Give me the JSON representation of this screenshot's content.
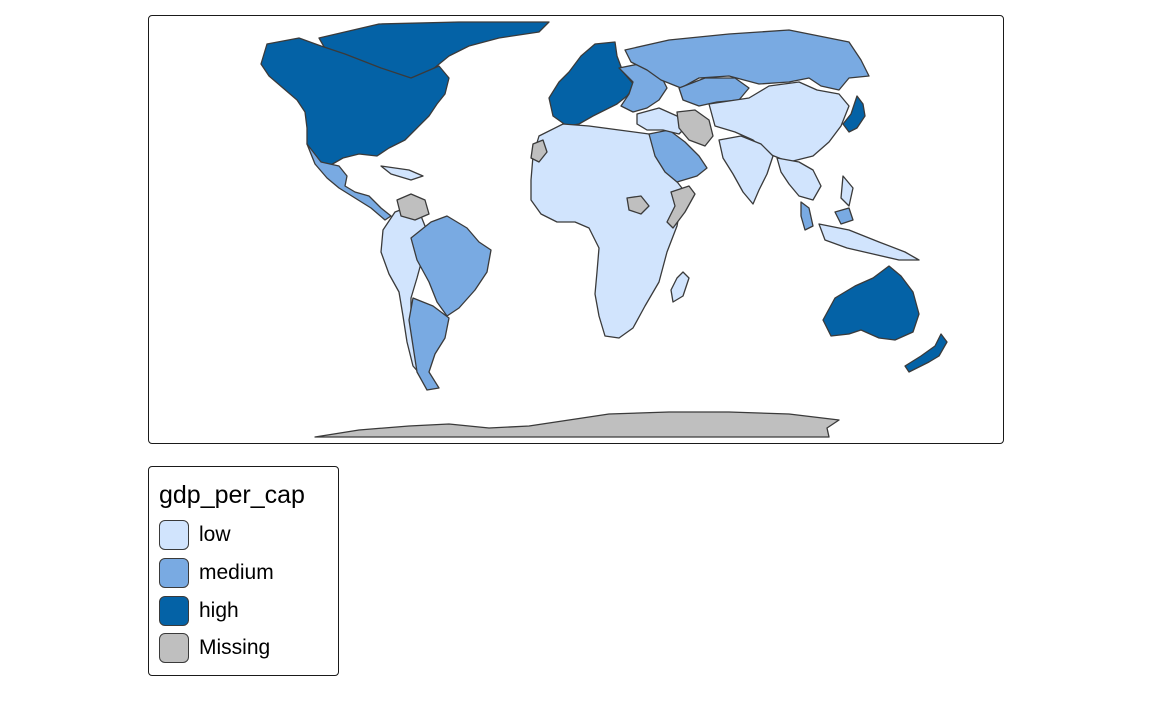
{
  "legend": {
    "title": "gdp_per_cap",
    "items": [
      {
        "label": "low",
        "color": "#d1e4fd"
      },
      {
        "label": "medium",
        "color": "#79aae2"
      },
      {
        "label": "high",
        "color": "#0462a6"
      },
      {
        "label": "Missing",
        "color": "#bfbfbf"
      }
    ]
  },
  "map": {
    "outline_color": "#3a3a3a",
    "regions": [
      {
        "name": "greenland",
        "class": "high"
      },
      {
        "name": "north-america",
        "class": "high"
      },
      {
        "name": "mexico-central-america",
        "class": "medium"
      },
      {
        "name": "caribbean",
        "class": "low"
      },
      {
        "name": "south-america-west",
        "class": "low"
      },
      {
        "name": "brazil",
        "class": "medium"
      },
      {
        "name": "southern-cone",
        "class": "medium"
      },
      {
        "name": "venezuela",
        "class": "missing"
      },
      {
        "name": "western-europe",
        "class": "high"
      },
      {
        "name": "eastern-europe",
        "class": "medium"
      },
      {
        "name": "russia",
        "class": "medium"
      },
      {
        "name": "kazakhstan",
        "class": "medium"
      },
      {
        "name": "africa",
        "class": "low"
      },
      {
        "name": "arabian-peninsula",
        "class": "medium"
      },
      {
        "name": "iran-afghanistan",
        "class": "missing"
      },
      {
        "name": "south-sudan",
        "class": "missing"
      },
      {
        "name": "western-sahara",
        "class": "missing"
      },
      {
        "name": "somalia",
        "class": "missing"
      },
      {
        "name": "middle-east",
        "class": "low"
      },
      {
        "name": "china-central-asia",
        "class": "low"
      },
      {
        "name": "india-south-asia",
        "class": "low"
      },
      {
        "name": "southeast-asia",
        "class": "low"
      },
      {
        "name": "malaysia",
        "class": "medium"
      },
      {
        "name": "japan",
        "class": "high"
      },
      {
        "name": "australia",
        "class": "high"
      },
      {
        "name": "new-zealand",
        "class": "high"
      },
      {
        "name": "madagascar",
        "class": "low"
      },
      {
        "name": "antarctica",
        "class": "missing"
      }
    ]
  }
}
